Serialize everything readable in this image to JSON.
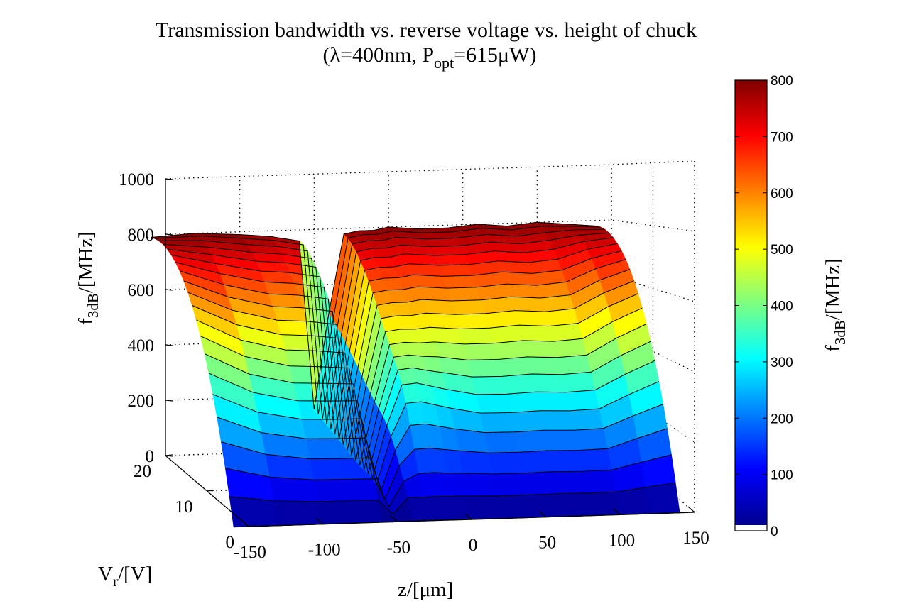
{
  "chart_data": {
    "type": "surface3d",
    "title_line1": "Transmission bandwidth vs. reverse voltage vs. height of chuck",
    "title_line2": {
      "prefix": "(λ=400nm, P",
      "sub": "opt",
      "suffix": "=615μW)"
    },
    "xlabel": "z/[μm]",
    "ylabel": {
      "main": "V",
      "sub": "r",
      "suffix": "/[V]"
    },
    "zlabel": {
      "main": "f",
      "sub": "3dB",
      "suffix": "/[MHz]"
    },
    "colorbar_label": {
      "main": "f",
      "sub": "3dB",
      "suffix": "/[MHz]"
    },
    "x_ticks": [
      "-150",
      "-100",
      "-50",
      "0",
      "50",
      "100",
      "150"
    ],
    "y_ticks": [
      "0",
      "10",
      "20"
    ],
    "z_ticks": [
      "0",
      "200",
      "400",
      "600",
      "800",
      "1000"
    ],
    "colorbar_ticks": [
      "0",
      "100",
      "200",
      "300",
      "400",
      "500",
      "600",
      "700",
      "800"
    ],
    "xlim": [
      -150,
      150
    ],
    "ylim": [
      0,
      20
    ],
    "zlim": [
      0,
      1000
    ],
    "clim": [
      0,
      800
    ],
    "colormap": "jet",
    "grid": true,
    "contour_lines": true,
    "z": [
      -160,
      -130,
      -100,
      -80,
      -60,
      -50,
      -40,
      -30,
      -20,
      -10,
      0,
      20,
      40,
      60,
      80,
      100,
      120,
      140
    ],
    "vr": [
      0,
      1,
      2,
      3,
      4,
      5,
      6,
      7,
      8,
      9,
      10,
      11,
      12,
      13,
      14,
      15,
      16,
      17,
      18,
      19,
      20
    ],
    "f3db_at_vr20": [
      790,
      800,
      790,
      780,
      760,
      150,
      500,
      780,
      790,
      790,
      800,
      790,
      790,
      800,
      790,
      800,
      790,
      780
    ]
  }
}
